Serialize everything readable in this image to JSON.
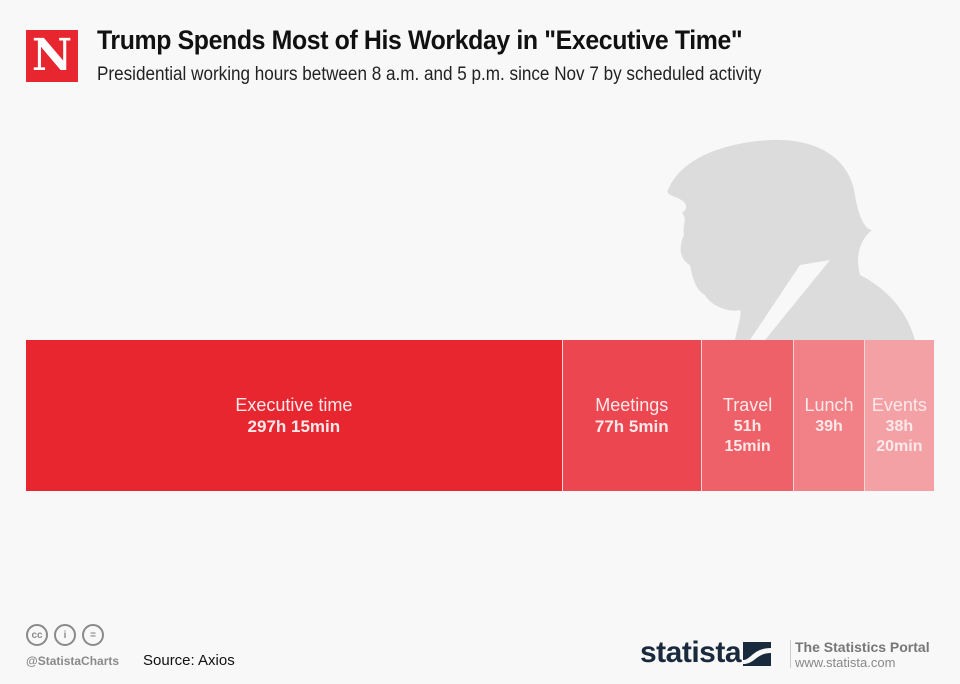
{
  "header": {
    "logo_letter": "N",
    "title": "Trump Spends Most of His Workday in \"Executive Time\"",
    "subtitle": "Presidential working hours between 8 a.m. and 5 p.m. since Nov 7 by scheduled activity"
  },
  "chart_data": {
    "type": "bar",
    "variant": "stacked-horizontal-single",
    "title": "Trump Spends Most of His Workday in \"Executive Time\"",
    "subtitle": "Presidential working hours between 8 a.m. and 5 p.m. since Nov 7 by scheduled activity",
    "unit": "hours",
    "categories": [
      "Executive time",
      "Meetings",
      "Travel",
      "Lunch",
      "Events"
    ],
    "values": [
      297.25,
      77.0833,
      51.25,
      39,
      38.3333
    ],
    "value_labels": [
      "297h 15min",
      "77h 5min",
      "51h 15min",
      "39h",
      "38h 20min"
    ],
    "colors": [
      "#e8262f",
      "#ec4650",
      "#ef6168",
      "#f28187",
      "#f4a1a6"
    ],
    "xlabel": "",
    "ylabel": "",
    "legend": "none",
    "grid": false
  },
  "footer": {
    "license_icons": [
      "cc-icon",
      "attribution-icon",
      "no-derivatives-icon"
    ],
    "license_glyphs": [
      "cc",
      "i",
      "="
    ],
    "handle": "@StatistaCharts",
    "source": "Source: Axios",
    "brand": "statista",
    "portal_title": "The Statistics Portal",
    "portal_url": "www.statista.com"
  }
}
